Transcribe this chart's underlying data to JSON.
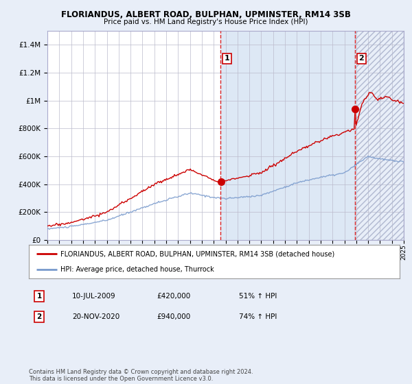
{
  "title": "FLORIANDUS, ALBERT ROAD, BULPHAN, UPMINSTER, RM14 3SB",
  "subtitle": "Price paid vs. HM Land Registry's House Price Index (HPI)",
  "legend_line1": "FLORIANDUS, ALBERT ROAD, BULPHAN, UPMINSTER, RM14 3SB (detached house)",
  "legend_line2": "HPI: Average price, detached house, Thurrock",
  "footnote": "Contains HM Land Registry data © Crown copyright and database right 2024.\nThis data is licensed under the Open Government Licence v3.0.",
  "sale1_date": "10-JUL-2009",
  "sale1_price": "£420,000",
  "sale1_hpi": "51% ↑ HPI",
  "sale2_date": "20-NOV-2020",
  "sale2_price": "£940,000",
  "sale2_hpi": "74% ↑ HPI",
  "ylim": [
    0,
    1500000
  ],
  "yticks": [
    0,
    200000,
    400000,
    600000,
    800000,
    1000000,
    1200000,
    1400000
  ],
  "bg_color": "#e8eef8",
  "plot_bg": "#ffffff",
  "red_line_color": "#cc0000",
  "blue_line_color": "#7799cc",
  "highlight_bg": "#dde8f5",
  "hatch_bg": "#e8eef8",
  "dashed_color": "#dd2222",
  "dot_color": "#cc0000",
  "title_color": "#000000",
  "grid_color": "#bbbbcc",
  "border_color": "#aaaacc",
  "sale1_x": 2009.583,
  "sale2_x": 2020.917,
  "start_year": 1995,
  "end_year": 2025
}
